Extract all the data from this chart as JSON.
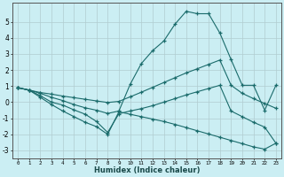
{
  "xlabel": "Humidex (Indice chaleur)",
  "ylabel": "",
  "background_color": "#cbeef3",
  "grid_color": "#b0ccd0",
  "line_color": "#1a6b6b",
  "xlim": [
    -0.5,
    23.5
  ],
  "ylim": [
    -3.5,
    6.2
  ],
  "yticks": [
    -3,
    -2,
    -1,
    0,
    1,
    2,
    3,
    4,
    5
  ],
  "xtick_labels": [
    "0",
    "1",
    "2",
    "3",
    "4",
    "5",
    "6",
    "7",
    "8",
    "9",
    "10",
    "11",
    "12",
    "13",
    "14",
    "15",
    "16",
    "17",
    "18",
    "19",
    "20",
    "21",
    "22",
    "23"
  ],
  "series": {
    "upper": {
      "x": [
        0,
        1,
        2,
        3,
        4,
        5,
        6,
        7,
        8,
        9,
        10,
        11,
        12,
        13,
        14,
        15,
        16,
        17,
        18,
        19,
        20,
        21,
        22,
        23
      ],
      "y": [
        0.9,
        0.75,
        0.55,
        0.3,
        0.1,
        -0.15,
        -0.35,
        -0.5,
        -0.7,
        -0.55,
        1.1,
        2.4,
        3.2,
        3.8,
        4.85,
        5.65,
        5.5,
        5.5,
        4.3,
        2.65,
        1.05,
        1.05,
        -0.5,
        1.05
      ]
    },
    "mid_upper": {
      "x": [
        0,
        1,
        2,
        3,
        4,
        5,
        6,
        7,
        8,
        9,
        10,
        11,
        12,
        13,
        14,
        15,
        16,
        17,
        18,
        19,
        20,
        21,
        22,
        23
      ],
      "y": [
        0.9,
        0.75,
        0.6,
        0.5,
        0.38,
        0.28,
        0.18,
        0.08,
        -0.02,
        0.05,
        0.33,
        0.62,
        0.92,
        1.22,
        1.52,
        1.82,
        2.08,
        2.35,
        2.62,
        1.05,
        0.55,
        0.22,
        -0.08,
        -0.38
      ]
    },
    "mid_lower": {
      "x": [
        0,
        1,
        2,
        3,
        4,
        5,
        6,
        7,
        8,
        9,
        10,
        11,
        12,
        13,
        14,
        15,
        16,
        17,
        18,
        19,
        20,
        21,
        22,
        23
      ],
      "y": [
        0.9,
        0.75,
        0.4,
        0.0,
        -0.18,
        -0.48,
        -0.75,
        -1.2,
        -1.88,
        -0.72,
        -0.55,
        -0.4,
        -0.22,
        0.0,
        0.22,
        0.45,
        0.65,
        0.85,
        1.05,
        -0.55,
        -0.9,
        -1.25,
        -1.55,
        -2.55
      ]
    },
    "lower": {
      "x": [
        0,
        1,
        2,
        3,
        4,
        5,
        6,
        7,
        8,
        9,
        10,
        11,
        12,
        13,
        14,
        15,
        16,
        17,
        18,
        19,
        20,
        21,
        22,
        23
      ],
      "y": [
        0.9,
        0.75,
        0.3,
        -0.15,
        -0.55,
        -0.9,
        -1.25,
        -1.52,
        -2.0,
        -0.6,
        -0.75,
        -0.9,
        -1.05,
        -1.2,
        -1.38,
        -1.58,
        -1.78,
        -1.98,
        -2.18,
        -2.38,
        -2.58,
        -2.78,
        -2.92,
        -2.55
      ]
    }
  }
}
